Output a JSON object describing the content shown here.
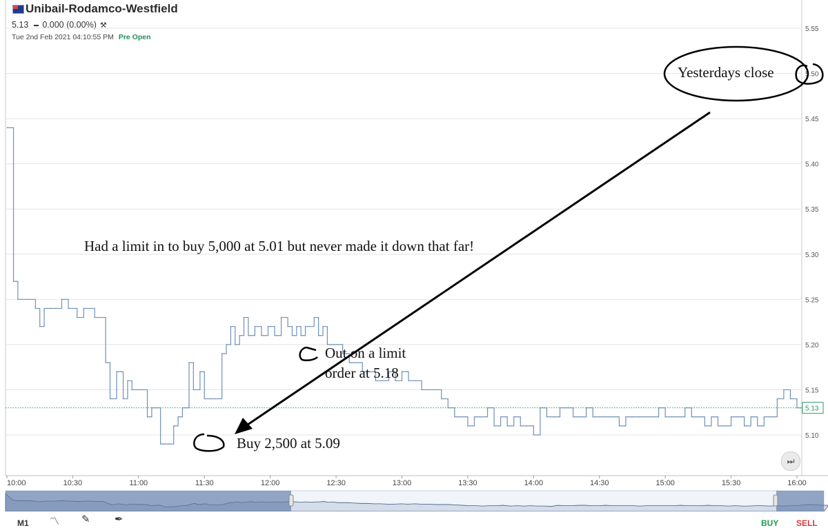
{
  "header": {
    "title": "Unibail-Rodamco-Westfield",
    "price": "5.13",
    "change": "0.000 (0.00%)",
    "timestamp": "Tue 2nd Feb 2021 04:10:55 PM",
    "status": "Pre Open"
  },
  "chart_data": {
    "type": "line",
    "ylim": [
      5.07,
      5.56
    ],
    "y_ticks": [
      "5.10",
      "5.15",
      "5.20",
      "5.25",
      "5.30",
      "5.35",
      "5.40",
      "5.45",
      "5.50",
      "5.55"
    ],
    "x_ticks": [
      "10:00",
      "10:30",
      "11:00",
      "11:30",
      "12:00",
      "12:30",
      "13:00",
      "13:30",
      "14:00",
      "14:30",
      "15:00",
      "15:30",
      "16:00"
    ],
    "last_price_label": "5.13",
    "grid": true,
    "colors": {
      "line": "#6f8fb8",
      "last_price": "#2a9a6a",
      "navigator_fill": "#9fb1cc",
      "navigator_line": "#3a5a8c"
    },
    "series": [
      {
        "x": [
          "10:00",
          "10:03",
          "10:05",
          "10:10",
          "10:13",
          "10:15",
          "10:17",
          "10:20",
          "10:22",
          "10:25",
          "10:28",
          "10:30",
          "10:32",
          "10:35",
          "10:38",
          "10:40",
          "10:43",
          "10:45",
          "10:47",
          "10:50",
          "10:53",
          "10:55",
          "10:57",
          "11:00",
          "11:02",
          "11:04",
          "11:06",
          "11:08",
          "11:10",
          "11:12",
          "11:14",
          "11:16",
          "11:18",
          "11:20",
          "11:23",
          "11:25",
          "11:28",
          "11:30",
          "11:33",
          "11:35",
          "11:38",
          "11:40",
          "11:42",
          "11:44",
          "11:46",
          "11:48",
          "11:50",
          "11:53",
          "11:56",
          "11:59",
          "12:00",
          "12:02",
          "12:05",
          "12:08",
          "12:10",
          "12:12",
          "12:14",
          "12:16",
          "12:18",
          "12:20",
          "12:22",
          "12:24",
          "12:26",
          "12:28",
          "12:30",
          "12:33",
          "12:36",
          "12:39",
          "12:42",
          "12:45",
          "12:48",
          "12:51",
          "12:54",
          "12:57",
          "13:00",
          "13:03",
          "13:06",
          "13:09",
          "13:12",
          "13:15",
          "13:18",
          "13:21",
          "13:24",
          "13:27",
          "13:30",
          "13:33",
          "13:36",
          "13:39",
          "13:42",
          "13:45",
          "13:48",
          "13:51",
          "13:54",
          "13:57",
          "14:00",
          "14:03",
          "14:06",
          "14:09",
          "14:12",
          "14:15",
          "14:18",
          "14:21",
          "14:24",
          "14:27",
          "14:30",
          "14:33",
          "14:36",
          "14:39",
          "14:42",
          "14:45",
          "14:48",
          "14:51",
          "14:54",
          "14:57",
          "15:00",
          "15:03",
          "15:06",
          "15:09",
          "15:12",
          "15:15",
          "15:18",
          "15:21",
          "15:24",
          "15:27",
          "15:30",
          "15:33",
          "15:36",
          "15:39",
          "15:42",
          "15:45",
          "15:48",
          "15:51",
          "15:54",
          "15:57",
          "16:00",
          "16:02"
        ],
        "y": [
          5.44,
          5.27,
          5.25,
          5.25,
          5.24,
          5.22,
          5.24,
          5.24,
          5.24,
          5.25,
          5.24,
          5.24,
          5.23,
          5.24,
          5.24,
          5.23,
          5.23,
          5.18,
          5.14,
          5.17,
          5.14,
          5.16,
          5.15,
          5.15,
          5.15,
          5.12,
          5.13,
          5.13,
          5.09,
          5.09,
          5.09,
          5.11,
          5.12,
          5.13,
          5.18,
          5.15,
          5.17,
          5.14,
          5.14,
          5.14,
          5.19,
          5.2,
          5.22,
          5.2,
          5.21,
          5.23,
          5.21,
          5.22,
          5.21,
          5.22,
          5.22,
          5.21,
          5.23,
          5.22,
          5.21,
          5.22,
          5.21,
          5.22,
          5.22,
          5.23,
          5.21,
          5.22,
          5.2,
          5.2,
          5.2,
          5.19,
          5.18,
          5.18,
          5.17,
          5.17,
          5.16,
          5.16,
          5.17,
          5.16,
          5.17,
          5.16,
          5.16,
          5.15,
          5.15,
          5.15,
          5.14,
          5.13,
          5.12,
          5.12,
          5.11,
          5.12,
          5.12,
          5.13,
          5.11,
          5.12,
          5.11,
          5.12,
          5.11,
          5.11,
          5.1,
          5.13,
          5.12,
          5.12,
          5.13,
          5.13,
          5.12,
          5.12,
          5.13,
          5.12,
          5.12,
          5.12,
          5.12,
          5.11,
          5.12,
          5.12,
          5.12,
          5.12,
          5.12,
          5.13,
          5.12,
          5.12,
          5.12,
          5.13,
          5.12,
          5.12,
          5.11,
          5.12,
          5.11,
          5.11,
          5.12,
          5.12,
          5.11,
          5.12,
          5.11,
          5.12,
          5.12,
          5.14,
          5.15,
          5.14,
          5.13,
          5.13
        ]
      }
    ]
  },
  "annotations": {
    "limit_note": "Had a limit in to buy 5,000 at 5.01 but never made it down that far!",
    "yesterday_close": "Yesterdays close",
    "out_line1": "Out on a limit",
    "out_line2": "order at 5.18",
    "buy_note": "Buy 2,500 at 5.09"
  },
  "toolbar": {
    "interval": "M1",
    "buy": "BUY",
    "sell": "SELL",
    "icons": [
      "line-chart-icon",
      "draw-tool-icon",
      "pen-icon",
      "fast-forward-icon",
      "tools-icon",
      "flag-icon"
    ]
  }
}
